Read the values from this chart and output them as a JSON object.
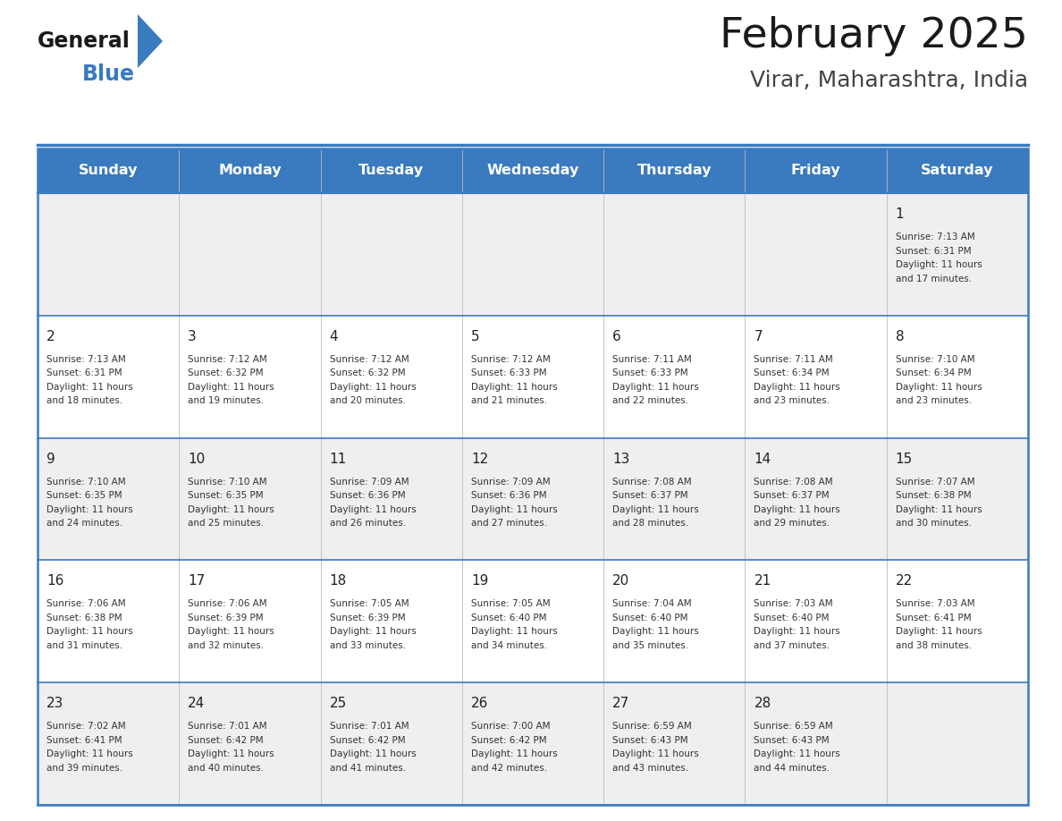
{
  "title": "February 2025",
  "subtitle": "Virar, Maharashtra, India",
  "header_color": "#3a7abf",
  "header_text_color": "#ffffff",
  "odd_row_bg": "#efefef",
  "even_row_bg": "#ffffff",
  "border_color": "#3a7abf",
  "title_color": "#1a1a1a",
  "subtitle_color": "#444444",
  "day_number_color": "#222222",
  "cell_text_color": "#333333",
  "day_names": [
    "Sunday",
    "Monday",
    "Tuesday",
    "Wednesday",
    "Thursday",
    "Friday",
    "Saturday"
  ],
  "calendar": [
    [
      null,
      null,
      null,
      null,
      null,
      null,
      {
        "day": "1",
        "sunrise": "7:13 AM",
        "sunset": "6:31 PM",
        "daylight_h": "11",
        "daylight_m": "17"
      }
    ],
    [
      {
        "day": "2",
        "sunrise": "7:13 AM",
        "sunset": "6:31 PM",
        "daylight_h": "11",
        "daylight_m": "18"
      },
      {
        "day": "3",
        "sunrise": "7:12 AM",
        "sunset": "6:32 PM",
        "daylight_h": "11",
        "daylight_m": "19"
      },
      {
        "day": "4",
        "sunrise": "7:12 AM",
        "sunset": "6:32 PM",
        "daylight_h": "11",
        "daylight_m": "20"
      },
      {
        "day": "5",
        "sunrise": "7:12 AM",
        "sunset": "6:33 PM",
        "daylight_h": "11",
        "daylight_m": "21"
      },
      {
        "day": "6",
        "sunrise": "7:11 AM",
        "sunset": "6:33 PM",
        "daylight_h": "11",
        "daylight_m": "22"
      },
      {
        "day": "7",
        "sunrise": "7:11 AM",
        "sunset": "6:34 PM",
        "daylight_h": "11",
        "daylight_m": "23"
      },
      {
        "day": "8",
        "sunrise": "7:10 AM",
        "sunset": "6:34 PM",
        "daylight_h": "11",
        "daylight_m": "23"
      }
    ],
    [
      {
        "day": "9",
        "sunrise": "7:10 AM",
        "sunset": "6:35 PM",
        "daylight_h": "11",
        "daylight_m": "24"
      },
      {
        "day": "10",
        "sunrise": "7:10 AM",
        "sunset": "6:35 PM",
        "daylight_h": "11",
        "daylight_m": "25"
      },
      {
        "day": "11",
        "sunrise": "7:09 AM",
        "sunset": "6:36 PM",
        "daylight_h": "11",
        "daylight_m": "26"
      },
      {
        "day": "12",
        "sunrise": "7:09 AM",
        "sunset": "6:36 PM",
        "daylight_h": "11",
        "daylight_m": "27"
      },
      {
        "day": "13",
        "sunrise": "7:08 AM",
        "sunset": "6:37 PM",
        "daylight_h": "11",
        "daylight_m": "28"
      },
      {
        "day": "14",
        "sunrise": "7:08 AM",
        "sunset": "6:37 PM",
        "daylight_h": "11",
        "daylight_m": "29"
      },
      {
        "day": "15",
        "sunrise": "7:07 AM",
        "sunset": "6:38 PM",
        "daylight_h": "11",
        "daylight_m": "30"
      }
    ],
    [
      {
        "day": "16",
        "sunrise": "7:06 AM",
        "sunset": "6:38 PM",
        "daylight_h": "11",
        "daylight_m": "31"
      },
      {
        "day": "17",
        "sunrise": "7:06 AM",
        "sunset": "6:39 PM",
        "daylight_h": "11",
        "daylight_m": "32"
      },
      {
        "day": "18",
        "sunrise": "7:05 AM",
        "sunset": "6:39 PM",
        "daylight_h": "11",
        "daylight_m": "33"
      },
      {
        "day": "19",
        "sunrise": "7:05 AM",
        "sunset": "6:40 PM",
        "daylight_h": "11",
        "daylight_m": "34"
      },
      {
        "day": "20",
        "sunrise": "7:04 AM",
        "sunset": "6:40 PM",
        "daylight_h": "11",
        "daylight_m": "35"
      },
      {
        "day": "21",
        "sunrise": "7:03 AM",
        "sunset": "6:40 PM",
        "daylight_h": "11",
        "daylight_m": "37"
      },
      {
        "day": "22",
        "sunrise": "7:03 AM",
        "sunset": "6:41 PM",
        "daylight_h": "11",
        "daylight_m": "38"
      }
    ],
    [
      {
        "day": "23",
        "sunrise": "7:02 AM",
        "sunset": "6:41 PM",
        "daylight_h": "11",
        "daylight_m": "39"
      },
      {
        "day": "24",
        "sunrise": "7:01 AM",
        "sunset": "6:42 PM",
        "daylight_h": "11",
        "daylight_m": "40"
      },
      {
        "day": "25",
        "sunrise": "7:01 AM",
        "sunset": "6:42 PM",
        "daylight_h": "11",
        "daylight_m": "41"
      },
      {
        "day": "26",
        "sunrise": "7:00 AM",
        "sunset": "6:42 PM",
        "daylight_h": "11",
        "daylight_m": "42"
      },
      {
        "day": "27",
        "sunrise": "6:59 AM",
        "sunset": "6:43 PM",
        "daylight_h": "11",
        "daylight_m": "43"
      },
      {
        "day": "28",
        "sunrise": "6:59 AM",
        "sunset": "6:43 PM",
        "daylight_h": "11",
        "daylight_m": "44"
      },
      null
    ]
  ]
}
